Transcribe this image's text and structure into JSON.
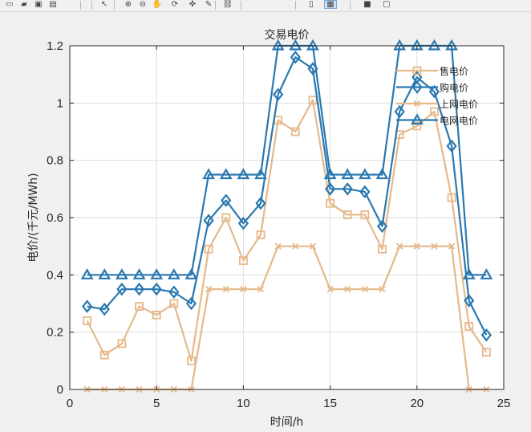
{
  "toolbar": {
    "buttons": [
      {
        "name": "new-figure-icon",
        "glyph": "▭"
      },
      {
        "name": "open-file-icon",
        "glyph": "▰"
      },
      {
        "name": "save-icon",
        "glyph": "▣"
      },
      {
        "name": "print-icon",
        "glyph": "▤"
      },
      {
        "name": "pointer-icon",
        "glyph": "↖"
      },
      {
        "name": "zoom-in-icon",
        "glyph": "⊕"
      },
      {
        "name": "zoom-out-icon",
        "glyph": "⊖"
      },
      {
        "name": "pan-icon",
        "glyph": "✋"
      },
      {
        "name": "rotate-icon",
        "glyph": "⟳"
      },
      {
        "name": "data-cursor-icon",
        "glyph": "✜"
      },
      {
        "name": "brush-icon",
        "glyph": "✎"
      },
      {
        "name": "link-icon",
        "glyph": "⛓"
      },
      {
        "name": "colorbar-icon",
        "glyph": "▯"
      },
      {
        "name": "legend-icon",
        "glyph": "▦"
      },
      {
        "name": "hide-tools-icon",
        "glyph": "■"
      },
      {
        "name": "dock-icon",
        "glyph": "▢"
      }
    ]
  },
  "chart_data": {
    "type": "line",
    "title": "交易电价",
    "xlabel": "时间/h",
    "ylabel": "电价/(千元/MWh)",
    "xlim": [
      0,
      25
    ],
    "ylim": [
      0,
      1.2
    ],
    "xticks": [
      0,
      5,
      10,
      15,
      20,
      25
    ],
    "yticks": [
      0,
      0.2,
      0.4,
      0.6,
      0.8,
      1,
      1.2
    ],
    "xtick_labels": [
      "0",
      "5",
      "10",
      "15",
      "20",
      "25"
    ],
    "ytick_labels": [
      "0",
      "0.2",
      "0.4",
      "0.6",
      "0.8",
      "1",
      "1.2"
    ],
    "grid": true,
    "legend_position": "top-right",
    "x": [
      1,
      2,
      3,
      4,
      5,
      6,
      7,
      8,
      9,
      10,
      11,
      12,
      13,
      14,
      15,
      16,
      17,
      18,
      19,
      20,
      21,
      22,
      23,
      24
    ],
    "series": [
      {
        "name": "售电价",
        "color": "#e6b88a",
        "marker": "square",
        "values": [
          0.24,
          0.12,
          0.16,
          0.29,
          0.26,
          0.3,
          0.1,
          0.49,
          0.6,
          0.45,
          0.54,
          0.94,
          0.9,
          1.01,
          0.65,
          0.61,
          0.61,
          0.49,
          0.89,
          0.92,
          0.97,
          0.67,
          0.22,
          0.13
        ]
      },
      {
        "name": "购电价",
        "color": "#2a78b0",
        "marker": "diamond",
        "values": [
          0.29,
          0.28,
          0.35,
          0.35,
          0.35,
          0.34,
          0.3,
          0.59,
          0.66,
          0.58,
          0.65,
          1.03,
          1.16,
          1.12,
          0.7,
          0.7,
          0.69,
          0.57,
          0.97,
          1.09,
          1.04,
          0.85,
          0.31,
          0.19
        ]
      },
      {
        "name": "上网电价",
        "color": "#e6b88a",
        "marker": "x",
        "values": [
          0,
          0,
          0,
          0,
          0,
          0,
          0,
          0.35,
          0.35,
          0.35,
          0.35,
          0.5,
          0.5,
          0.5,
          0.35,
          0.35,
          0.35,
          0.35,
          0.5,
          0.5,
          0.5,
          0.5,
          0,
          0
        ]
      },
      {
        "name": "电网电价",
        "color": "#2a78b0",
        "marker": "triangle",
        "values": [
          0.4,
          0.4,
          0.4,
          0.4,
          0.4,
          0.4,
          0.4,
          0.75,
          0.75,
          0.75,
          0.75,
          1.2,
          1.2,
          1.2,
          0.75,
          0.75,
          0.75,
          0.75,
          1.2,
          1.2,
          1.2,
          1.2,
          0.4,
          0.4
        ]
      }
    ]
  }
}
